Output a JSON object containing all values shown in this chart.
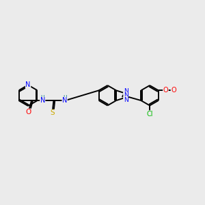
{
  "background_color": "#ebebeb",
  "bond_color": "#000000",
  "atom_colors": {
    "N": "#0000ff",
    "O": "#ff0000",
    "S": "#ccaa00",
    "Cl": "#00bb00",
    "C": "#000000",
    "H": "#008080"
  },
  "figsize": [
    3.0,
    3.0
  ],
  "dpi": 100
}
